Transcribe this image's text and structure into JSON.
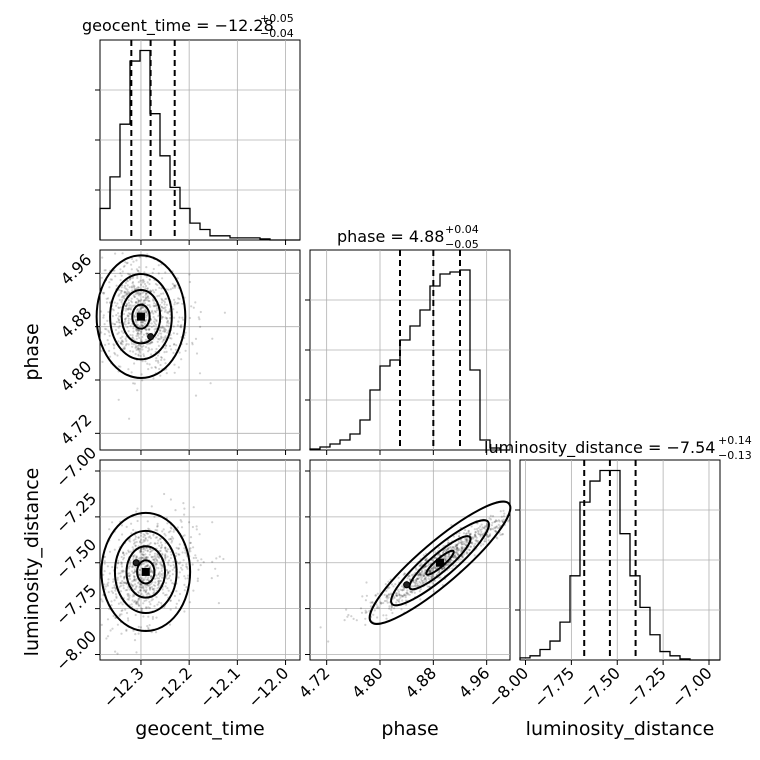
{
  "chart_data": {
    "type": "corner",
    "params": [
      {
        "name": "geocent_time",
        "range": [
          -12.385,
          -11.97
        ],
        "ticks": [
          -12.3,
          -12.2,
          -12.1,
          -12.0
        ],
        "tick_labels": [
          "−12.3",
          "−12.2",
          "−12.1",
          "−12.0"
        ],
        "median": -12.28,
        "quantiles": [
          -12.32,
          -12.28,
          -12.23
        ],
        "title": {
          "main": "geocent_time = −12.28",
          "sup": "+0.05",
          "sub": "−0.04"
        },
        "axis_label": "geocent_time",
        "hist_edges_range": [
          -12.385,
          -11.97
        ],
        "hist_counts": [
          0.15,
          0.3,
          0.55,
          0.85,
          0.9,
          0.6,
          0.4,
          0.25,
          0.15,
          0.08,
          0.05,
          0.02,
          0.02,
          0.01,
          0.01,
          0.01,
          0.005,
          0.0,
          0.0,
          0.0
        ],
        "hist_ylim": [
          0,
          0.95
        ]
      },
      {
        "name": "phase",
        "range": [
          4.695,
          4.995
        ],
        "ticks": [
          4.72,
          4.8,
          4.88,
          4.96
        ],
        "tick_labels": [
          "4.72",
          "4.80",
          "4.88",
          "4.96"
        ],
        "median": 4.88,
        "quantiles": [
          4.83,
          4.88,
          4.92
        ],
        "title": {
          "main": "phase = 4.88",
          "sup": "+0.04",
          "sub": "−0.05"
        },
        "axis_label": "phase",
        "hist_edges_range": [
          4.695,
          4.995
        ],
        "hist_counts": [
          0.005,
          0.015,
          0.03,
          0.05,
          0.08,
          0.15,
          0.3,
          0.42,
          0.45,
          0.55,
          0.62,
          0.7,
          0.82,
          0.88,
          0.89,
          0.9,
          0.4,
          0.05,
          0.01,
          0.0
        ],
        "hist_ylim": [
          0,
          1.0
        ]
      },
      {
        "name": "luminosity_distance",
        "range": [
          -8.03,
          -6.94
        ],
        "ticks": [
          -8.0,
          -7.75,
          -7.5,
          -7.25,
          -7.0
        ],
        "tick_labels": [
          "−8.00",
          "−7.75",
          "−7.50",
          "−7.25",
          "−7.00"
        ],
        "median": -7.54,
        "quantiles": [
          -7.68,
          -7.54,
          -7.4
        ],
        "title": {
          "main": "luminosity_distance = −7.54",
          "sup": "+0.14",
          "sub": "−0.13"
        },
        "axis_label": "luminosity_distance",
        "hist_edges_range": [
          -8.03,
          -6.94
        ],
        "hist_counts": [
          0.01,
          0.02,
          0.05,
          0.09,
          0.18,
          0.4,
          0.75,
          0.85,
          0.9,
          0.9,
          0.6,
          0.4,
          0.25,
          0.12,
          0.04,
          0.02,
          0.005,
          0.0,
          0.0,
          0.0
        ],
        "hist_ylim": [
          0,
          0.95
        ]
      }
    ],
    "scatter_panels": [
      {
        "x": "geocent_time",
        "y": "phase",
        "peak": [
          -12.3,
          4.895
        ],
        "secondary": [
          -12.28,
          4.865
        ],
        "spread": [
          0.04,
          0.04
        ],
        "correlation": -0.2
      },
      {
        "x": "geocent_time",
        "y": "luminosity_distance",
        "peak": [
          -12.29,
          -7.55
        ],
        "secondary": [
          -12.31,
          -7.5
        ],
        "spread": [
          0.04,
          0.14
        ],
        "correlation": 0.3
      },
      {
        "x": "phase",
        "y": "luminosity_distance",
        "peak": [
          4.89,
          -7.5
        ],
        "secondary": [
          4.84,
          -7.62
        ],
        "spread": [
          0.045,
          0.14
        ],
        "correlation": 0.95
      }
    ],
    "grid": true
  }
}
